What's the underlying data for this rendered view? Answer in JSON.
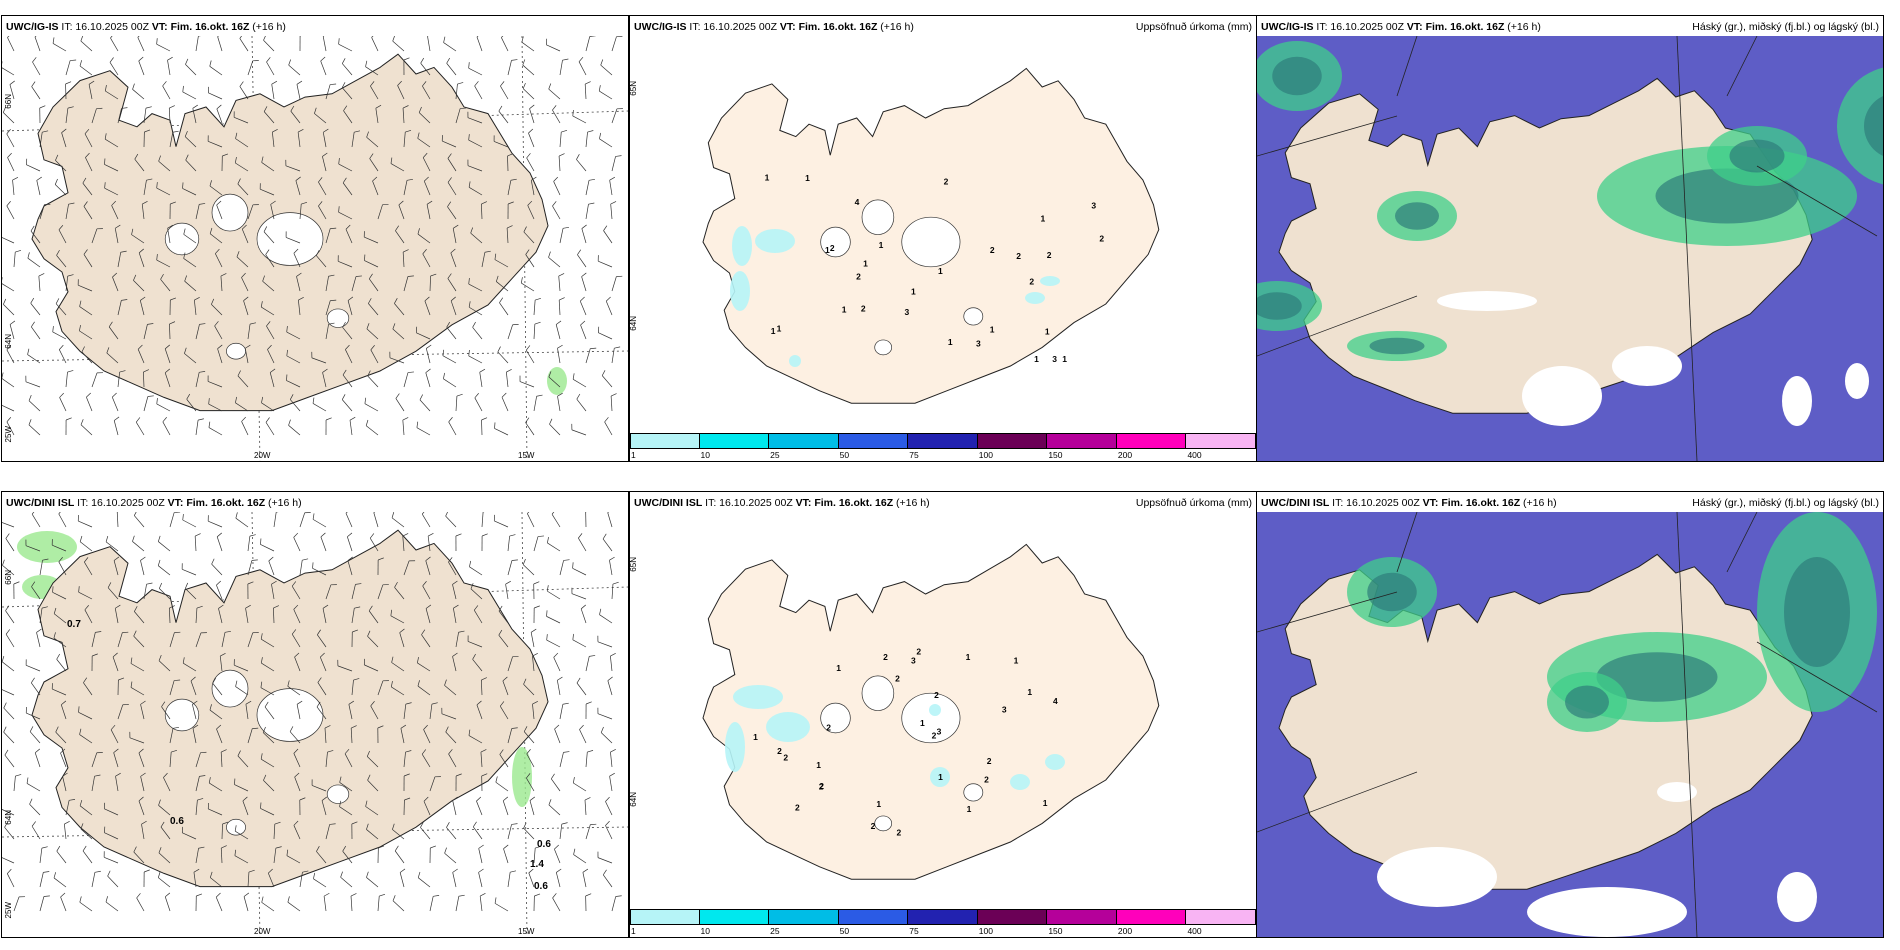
{
  "rows": [
    {
      "model": "UWC/IG-IS",
      "init": "IT: 16.10.2025 00Z",
      "valid_prefix": "VT:",
      "valid": "Fim. 16.okt. 16Z",
      "lead": "(+16 h)",
      "wind_labels": {
        "lat_top": "66N",
        "lat_mid": "64N",
        "lon_left": "25W",
        "lon_mid": "20W",
        "lon_right": "15W"
      },
      "wind_values": [],
      "precip_labels": [
        "1",
        "1",
        "1",
        "2",
        "1",
        "4",
        "3",
        "2",
        "2",
        "2",
        "2",
        "2",
        "1",
        "1",
        "1",
        "1",
        "1",
        "2",
        "3",
        "1",
        "3",
        "2",
        "3",
        "1",
        "1",
        "2",
        "1",
        "1",
        "1",
        "1"
      ],
      "precip_lat_top": "65N",
      "precip_lat_mid": "64N"
    },
    {
      "model": "UWC/DINI ISL",
      "init": "IT: 16.10.2025 00Z",
      "valid_prefix": "VT:",
      "valid": "Fim. 16.okt. 16Z",
      "lead": "(+16 h)",
      "wind_labels": {
        "lat_top": "66N",
        "lat_mid": "64N",
        "lon_left": "25W",
        "lon_mid": "20W",
        "lon_right": "15W"
      },
      "wind_values": [
        "0.7",
        "0.6",
        "0.6",
        "1.4",
        "0.6"
      ],
      "precip_labels": [
        "2",
        "1",
        "1",
        "1",
        "1",
        "2",
        "1",
        "2",
        "4",
        "3",
        "2",
        "2",
        "2",
        "2",
        "2",
        "2",
        "1",
        "1",
        "2",
        "2",
        "1",
        "3",
        "2",
        "3",
        "1",
        "1",
        "2",
        "1",
        "2",
        "2"
      ],
      "precip_lat_top": "65N",
      "precip_lat_mid": "64N"
    }
  ],
  "precip_title": "Uppsöfnuð úrkoma (mm)",
  "cloud_title": "Háský (gr.), miðský (fj.bl.) og lágský (bl.)",
  "colorbar": {
    "ticks": [
      "1",
      "10",
      "25",
      "50",
      "75",
      "100",
      "150",
      "200",
      "400"
    ],
    "colors": [
      "#b6f4f7",
      "#00e8ee",
      "#00bde6",
      "#2b5be5",
      "#2222b0",
      "#6b0056",
      "#b5009a",
      "#ff00bb",
      "#f8b4f3"
    ]
  },
  "colors": {
    "land": "#efe1d0",
    "land_precip": "#fdf0e2",
    "sea_cloud": "#5e5dc6",
    "cloud_green": "#3fcf8a",
    "cloud_dark": "#2e7d7a",
    "light_green": "#9be88f"
  }
}
